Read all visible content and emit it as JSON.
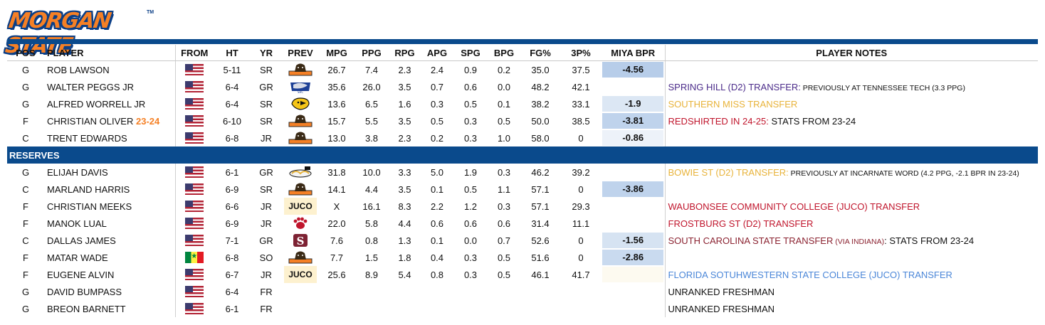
{
  "logo": {
    "text": "MORGAN STATE",
    "tm": "TM"
  },
  "colors": {
    "navy": "#0a4a8c",
    "orange": "#f58025"
  },
  "columns": [
    "POS",
    "PLAYER",
    "FROM",
    "HT",
    "YR",
    "PREV",
    "MPG",
    "PPG",
    "RPG",
    "APG",
    "SPG",
    "BPG",
    "FG%",
    "3P%",
    "MIYA BPR",
    "PLAYER NOTES"
  ],
  "section_label": "RESERVES",
  "starters": [
    {
      "pos": "G",
      "player": "ROB LAWSON",
      "flag": "usa-flag",
      "ht": "5-11",
      "yr": "SR",
      "prev": "morgan-state-bear-logo",
      "mpg": "26.7",
      "ppg": "7.4",
      "rpg": "2.3",
      "apg": "2.4",
      "spg": "0.9",
      "bpg": "0.2",
      "fg": "35.0",
      "tp": "37.5",
      "bpr": "-4.56",
      "bpr_color": "#b7cde9",
      "note": ""
    },
    {
      "pos": "G",
      "player": "WALTER PEGGS JR",
      "flag": "usa-flag",
      "ht": "6-4",
      "yr": "GR",
      "prev": "spring-hill-badger-logo",
      "mpg": "35.6",
      "ppg": "26.0",
      "rpg": "3.5",
      "apg": "0.7",
      "spg": "0.6",
      "bpg": "0.0",
      "fg": "48.2",
      "tp": "42.1",
      "bpr": "",
      "bpr_color": "",
      "note": "SPRING HILL (D2) TRANSFER:",
      "note_color": "purple",
      "note_extra": " PREVIOUSLY AT TENNESSEE TECH (3.3 PPG)",
      "note_extra_style": "small"
    },
    {
      "pos": "G",
      "player": "ALFRED WORRELL JR",
      "flag": "usa-flag",
      "ht": "6-4",
      "yr": "SR",
      "prev": "southern-miss-eagle-logo",
      "mpg": "13.6",
      "ppg": "6.5",
      "rpg": "1.6",
      "apg": "0.3",
      "spg": "0.5",
      "bpg": "0.1",
      "fg": "38.2",
      "tp": "33.1",
      "bpr": "-1.9",
      "bpr_color": "#dce7f4",
      "note": "SOUTHERN MISS TRANSFER",
      "note_color": "gold"
    },
    {
      "pos": "F",
      "player": "CHRISTIAN OLIVER",
      "player_tag": "23-24",
      "flag": "usa-flag",
      "ht": "6-10",
      "yr": "SR",
      "prev": "morgan-state-bear-logo",
      "mpg": "15.7",
      "ppg": "5.5",
      "rpg": "3.5",
      "apg": "0.5",
      "spg": "0.3",
      "bpg": "0.5",
      "fg": "50.0",
      "tp": "38.5",
      "bpr": "-3.81",
      "bpr_color": "#bfd3ec",
      "note": "REDSHIRTED IN 24-25:",
      "note_color": "red",
      "note_extra": " STATS FROM 23-24",
      "note_extra_style": "black"
    },
    {
      "pos": "C",
      "player": "TRENT EDWARDS",
      "flag": "usa-flag",
      "ht": "6-8",
      "yr": "JR",
      "prev": "morgan-state-bear-logo",
      "mpg": "13.0",
      "ppg": "3.8",
      "rpg": "2.3",
      "apg": "0.2",
      "spg": "0.3",
      "bpg": "1.0",
      "fg": "58.0",
      "tp": "0",
      "bpr": "-0.86",
      "bpr_color": "#edf2f9",
      "note": ""
    }
  ],
  "reserves": [
    {
      "pos": "G",
      "player": "ELIJAH DAVIS",
      "flag": "usa-flag",
      "ht": "6-1",
      "yr": "GR",
      "prev": "bowie-state-logo",
      "mpg": "31.8",
      "ppg": "10.0",
      "rpg": "3.3",
      "apg": "5.0",
      "spg": "1.9",
      "bpg": "0.3",
      "fg": "46.2",
      "tp": "39.2",
      "bpr": "",
      "bpr_color": "",
      "note": "BOWIE ST (D2) TRANSFER:",
      "note_color": "gold",
      "note_extra": " PREVIOUSLY AT INCARNATE WORD (4.2 PPG, -2.1 BPR IN 23-24)",
      "note_extra_style": "small"
    },
    {
      "pos": "C",
      "player": "MARLAND HARRIS",
      "flag": "usa-flag",
      "ht": "6-9",
      "yr": "SR",
      "prev": "morgan-state-bear-logo",
      "mpg": "14.1",
      "ppg": "4.4",
      "rpg": "3.5",
      "apg": "0.1",
      "spg": "0.5",
      "bpg": "1.1",
      "fg": "57.1",
      "tp": "0",
      "bpr": "-3.86",
      "bpr_color": "#bfd3ec",
      "note": ""
    },
    {
      "pos": "F",
      "player": "CHRISTIAN MEEKS",
      "flag": "usa-flag",
      "ht": "6-6",
      "yr": "JR",
      "prev_text": "JUCO",
      "mpg": "X",
      "ppg": "16.1",
      "rpg": "8.3",
      "apg": "2.2",
      "spg": "1.2",
      "bpg": "0.3",
      "fg": "57.1",
      "tp": "29.3",
      "bpr": "",
      "bpr_color": "",
      "note": "WAUBONSEE COMMUNITY COLLEGE (JUCO) TRANSFER",
      "note_color": "red"
    },
    {
      "pos": "F",
      "player": "MANOK LUAL",
      "flag": "usa-flag",
      "ht": "6-9",
      "yr": "JR",
      "prev": "frostburg-paw-logo",
      "mpg": "22.0",
      "ppg": "5.8",
      "rpg": "4.4",
      "apg": "0.6",
      "spg": "0.6",
      "bpg": "0.6",
      "fg": "31.4",
      "tp": "11.1",
      "bpr": "",
      "bpr_color": "",
      "note": "FROSTBURG ST (D2) TRANSFER",
      "note_color": "red"
    },
    {
      "pos": "C",
      "player": "DALLAS JAMES",
      "flag": "usa-flag",
      "ht": "7-1",
      "yr": "GR",
      "prev": "south-carolina-state-logo",
      "mpg": "7.6",
      "ppg": "0.8",
      "rpg": "1.3",
      "apg": "0.1",
      "spg": "0.0",
      "bpg": "0.7",
      "fg": "52.6",
      "tp": "0",
      "bpr": "-1.56",
      "bpr_color": "#d6e3f2",
      "note": "SOUTH CAROLINA STATE TRANSFER",
      "note_color": "maroon",
      "note_mid": " (VIA INDIANA)",
      "note_extra": ": STATS FROM 23-24",
      "note_extra_style": "black"
    },
    {
      "pos": "F",
      "player": "MATAR WADE",
      "flag": "senegal-flag",
      "ht": "6-8",
      "yr": "SO",
      "prev": "morgan-state-bear-logo",
      "mpg": "7.7",
      "ppg": "1.5",
      "rpg": "1.8",
      "apg": "0.4",
      "spg": "0.3",
      "bpg": "0.5",
      "fg": "51.6",
      "tp": "0",
      "bpr": "-2.86",
      "bpr_color": "#c9daef",
      "note": ""
    },
    {
      "pos": "F",
      "player": "EUGENE ALVIN",
      "flag": "usa-flag",
      "ht": "6-7",
      "yr": "JR",
      "prev_text": "JUCO",
      "mpg": "25.6",
      "ppg": "8.9",
      "rpg": "5.4",
      "apg": "0.8",
      "spg": "0.3",
      "bpg": "0.5",
      "fg": "46.1",
      "tp": "41.7",
      "bpr": "",
      "bpr_color": "#fdfaf0",
      "note": "FLORIDA SOTUHWESTERN STATE COLLEGE (JUCO) TRANSFER",
      "note_color": "blue"
    },
    {
      "pos": "G",
      "player": "DAVID BUMPASS",
      "flag": "usa-flag",
      "ht": "6-4",
      "yr": "FR",
      "mpg": "",
      "ppg": "",
      "rpg": "",
      "apg": "",
      "spg": "",
      "bpg": "",
      "fg": "",
      "tp": "",
      "bpr": "",
      "bpr_color": "",
      "note": "UNRANKED FRESHMAN",
      "note_color": "black"
    },
    {
      "pos": "G",
      "player": "BREON BARNETT",
      "flag": "usa-flag",
      "ht": "6-1",
      "yr": "FR",
      "mpg": "",
      "ppg": "",
      "rpg": "",
      "apg": "",
      "spg": "",
      "bpg": "",
      "fg": "",
      "tp": "",
      "bpr": "",
      "bpr_color": "",
      "note": "UNRANKED FRESHMAN",
      "note_color": "black"
    }
  ]
}
